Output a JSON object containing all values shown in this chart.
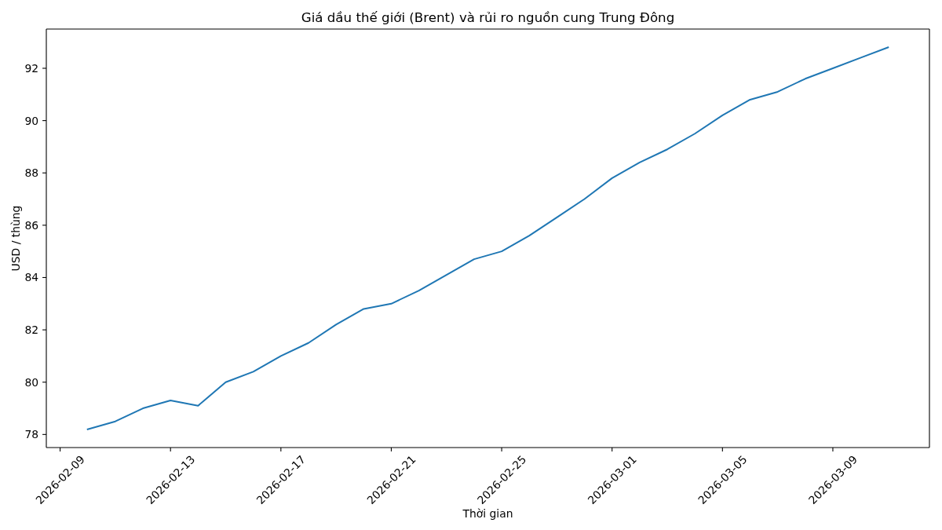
{
  "chart_data": {
    "type": "line",
    "title": "Giá dầu thế giới (Brent) và rủi ro nguồn cung Trung Đông",
    "xlabel": "Thời gian",
    "ylabel": "USD / thùng",
    "x": [
      "2026-02-10",
      "2026-02-11",
      "2026-02-12",
      "2026-02-13",
      "2026-02-14",
      "2026-02-15",
      "2026-02-16",
      "2026-02-17",
      "2026-02-18",
      "2026-02-19",
      "2026-02-20",
      "2026-02-21",
      "2026-02-22",
      "2026-02-23",
      "2026-02-24",
      "2026-02-25",
      "2026-02-26",
      "2026-02-27",
      "2026-02-28",
      "2026-03-01",
      "2026-03-02",
      "2026-03-03",
      "2026-03-04",
      "2026-03-05",
      "2026-03-06",
      "2026-03-07",
      "2026-03-08",
      "2026-03-09",
      "2026-03-10",
      "2026-03-11"
    ],
    "series": [
      {
        "color": "#1f77b4",
        "values": [
          78.2,
          78.5,
          79.0,
          79.3,
          79.1,
          80.0,
          80.4,
          81.0,
          81.5,
          82.2,
          82.8,
          83.0,
          83.5,
          84.1,
          84.7,
          85.0,
          85.6,
          86.3,
          87.0,
          87.8,
          88.4,
          88.9,
          89.5,
          90.2,
          90.8,
          91.1,
          91.6,
          92.0,
          92.4,
          92.8
        ]
      }
    ],
    "xlim": [
      "2026-02-08T12:00",
      "2026-03-12T12:00"
    ],
    "ylim": [
      77.5,
      93.5
    ],
    "xticks": [
      "2026-02-09",
      "2026-02-13",
      "2026-02-17",
      "2026-02-21",
      "2026-02-25",
      "2026-03-01",
      "2026-03-05",
      "2026-03-09"
    ],
    "yticks": [
      78,
      80,
      82,
      84,
      86,
      88,
      90,
      92
    ]
  }
}
